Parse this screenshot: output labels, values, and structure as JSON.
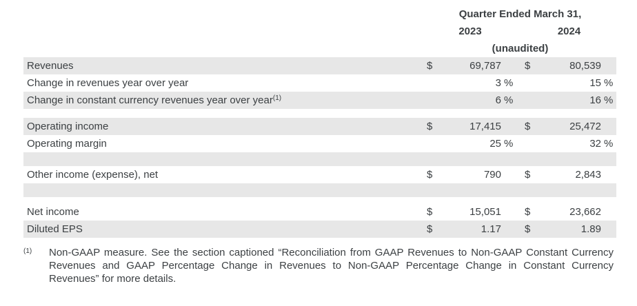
{
  "colors": {
    "row_shaded": "#e7e7e7",
    "text": "#3c4043"
  },
  "table": {
    "header": {
      "title": "Quarter Ended March 31,",
      "col_2023": "2023",
      "col_2024": "2024",
      "subtitle": "(unaudited)"
    },
    "rows": [
      {
        "label": "Revenues",
        "sup": "",
        "d1": "$",
        "v1": "69,787",
        "p1": "",
        "d2": "$",
        "v2": "80,539",
        "p2": "",
        "shaded": true
      },
      {
        "label": "Change in revenues year over year",
        "sup": "",
        "d1": "",
        "v1": "3",
        "p1": "%",
        "d2": "",
        "v2": "15",
        "p2": "%",
        "shaded": false
      },
      {
        "label": "Change in constant currency revenues year over year",
        "sup": "(1)",
        "d1": "",
        "v1": "6",
        "p1": "%",
        "d2": "",
        "v2": "16",
        "p2": "%",
        "shaded": true
      },
      {
        "type": "gap-lg"
      },
      {
        "label": "Operating income",
        "sup": "",
        "d1": "$",
        "v1": "17,415",
        "p1": "",
        "d2": "$",
        "v2": "25,472",
        "p2": "",
        "shaded": true
      },
      {
        "label": "Operating margin",
        "sup": "",
        "d1": "",
        "v1": "25",
        "p1": "%",
        "d2": "",
        "v2": "32",
        "p2": "%",
        "shaded": false
      },
      {
        "type": "blank"
      },
      {
        "label": "Other income (expense), net",
        "sup": "",
        "d1": "$",
        "v1": "790",
        "p1": "",
        "d2": "$",
        "v2": "2,843",
        "p2": "",
        "shaded": false
      },
      {
        "type": "blank"
      },
      {
        "type": "gap-sm"
      },
      {
        "label": "Net income",
        "sup": "",
        "d1": "$",
        "v1": "15,051",
        "p1": "",
        "d2": "$",
        "v2": "23,662",
        "p2": "",
        "shaded": false
      },
      {
        "label": "Diluted EPS",
        "sup": "",
        "d1": "$",
        "v1": "1.17",
        "p1": "",
        "d2": "$",
        "v2": "1.89",
        "p2": "",
        "shaded": true
      }
    ],
    "footnote": {
      "marker": "(1)",
      "text": "Non-GAAP measure. See the section captioned “Reconciliation from GAAP Revenues to Non-GAAP Constant Currency Revenues and GAAP Percentage Change in Revenues to Non-GAAP Percentage Change in Constant Currency Revenues” for more details."
    }
  }
}
